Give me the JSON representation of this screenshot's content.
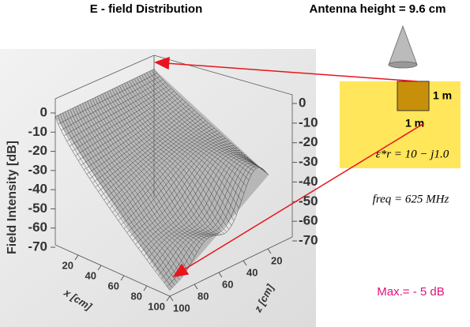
{
  "title": "E - field Distribution",
  "antenna": "Antenna height = 9.6 cm",
  "y_axis_label": "Field Intensity [dB]",
  "x_axis_label": "x [cm]",
  "z_axis_label": "z [cm]",
  "db_ticks": [
    0,
    -10,
    -20,
    -30,
    -40,
    -50,
    -60,
    -70
  ],
  "x_ticks": [
    20,
    40,
    60,
    80,
    100
  ],
  "z_ticks": [
    20,
    40,
    60,
    80,
    100
  ],
  "room_width": "1 m",
  "room_depth": "1 m",
  "permittivity": "ε*r = 10 −  j1.0",
  "freq": "freq =  625  MHz",
  "max": "Max.= - 5 dB"
}
